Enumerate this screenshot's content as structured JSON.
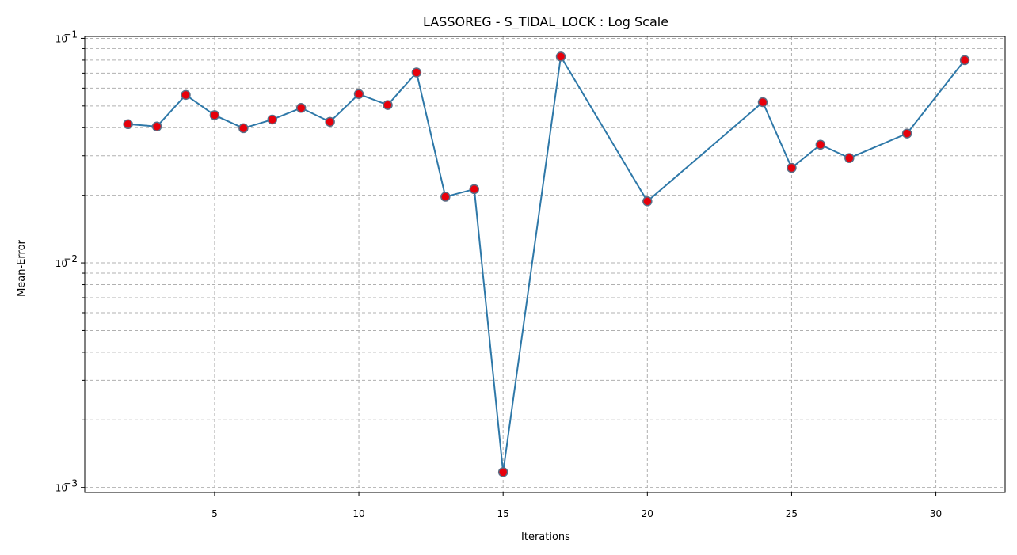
{
  "chart_data": {
    "type": "line",
    "title": "LASSOREG - S_TIDAL_LOCK : Log Scale",
    "xlabel": "Iterations",
    "ylabel": "Mean-Error",
    "yscale": "log",
    "xlim": [
      0.5,
      32.4
    ],
    "ylim": [
      0.00095,
      0.102
    ],
    "x_ticks": [
      5,
      10,
      15,
      20,
      25,
      30
    ],
    "y_major_ticks": [
      {
        "value": 0.001,
        "base": "10",
        "exp": "−3"
      },
      {
        "value": 0.01,
        "base": "10",
        "exp": "−2"
      },
      {
        "value": 0.1,
        "base": "10",
        "exp": "−1"
      }
    ],
    "grid": true,
    "line_color": "#2e78a8",
    "marker_fill": "#e8000b",
    "marker_edge": "#5a6e86",
    "series": [
      {
        "x": [
          2,
          3,
          4,
          5,
          6,
          7,
          8,
          9,
          10,
          11,
          12,
          13,
          14,
          15,
          17,
          20,
          24,
          25,
          26,
          27,
          29,
          31
        ],
        "y": [
          0.0415,
          0.0405,
          0.056,
          0.0455,
          0.0398,
          0.0435,
          0.049,
          0.0425,
          0.0565,
          0.0505,
          0.0705,
          0.0197,
          0.0213,
          0.00117,
          0.083,
          0.0188,
          0.052,
          0.0265,
          0.0336,
          0.0293,
          0.0377,
          0.08
        ]
      }
    ]
  }
}
